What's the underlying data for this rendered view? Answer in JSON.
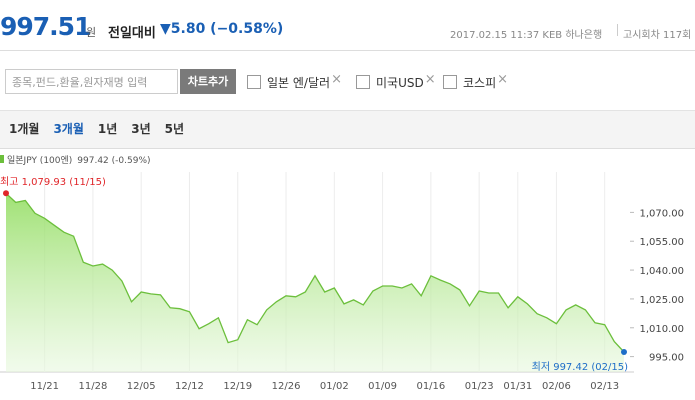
{
  "header": {
    "price": "997.51",
    "unit": "원",
    "change_label": "전일대비",
    "change": "▼5.80 (−0.58%)",
    "info": "2017.02.15 11:37 KEB 하나은행",
    "round": "고시회차 117회"
  },
  "controls": {
    "search_placeholder": "종목,펀드,환율,원자재명 입력",
    "add_button": "차트추가",
    "compare": [
      "일본 엔/달러",
      "미국USD",
      "코스피"
    ]
  },
  "periods": {
    "items": [
      "1개월",
      "3개월",
      "1년",
      "3년",
      "5년"
    ],
    "selected": 1
  },
  "chart_data": {
    "type": "area",
    "series": [
      {
        "name": "일본JPY (100엔)",
        "color": "#6cbf3c",
        "values": [
          1079.93,
          1075.2,
          1076.2,
          1069.5,
          1066.9,
          1063.3,
          1059.7,
          1057.6,
          1044.1,
          1042.1,
          1043.1,
          1040,
          1034.3,
          1023.5,
          1028.6,
          1027.6,
          1027.1,
          1020.4,
          1019.9,
          1018.3,
          1009.5,
          1012.1,
          1015.2,
          1002.3,
          1003.8,
          1014.2,
          1011.6,
          1019.3,
          1023.5,
          1026.6,
          1026.1,
          1028.6,
          1037,
          1028.6,
          1030.7,
          1022.4,
          1024.5,
          1021.9,
          1029.1,
          1031.7,
          1031.7,
          1030.7,
          1032.8,
          1026.6,
          1037,
          1034.8,
          1032.8,
          1029.7,
          1021.4,
          1029.1,
          1028.1,
          1028.1,
          1020.4,
          1026.1,
          1022.4,
          1017.3,
          1015.2,
          1012.1,
          1019.3,
          1021.9,
          1019.3,
          1012.6,
          1011.6,
          1002.8,
          997.42
        ]
      }
    ],
    "legend_value": "997.42 (-0.59%)",
    "categories": [
      null,
      null,
      null,
      null,
      "11/21",
      null,
      null,
      null,
      null,
      "11/28",
      null,
      null,
      null,
      null,
      "12/05",
      null,
      null,
      null,
      null,
      "12/12",
      null,
      null,
      null,
      null,
      "12/19",
      null,
      null,
      null,
      null,
      "12/26",
      null,
      null,
      null,
      null,
      "01/02",
      null,
      null,
      null,
      null,
      "01/09",
      null,
      null,
      null,
      null,
      "01/16",
      null,
      null,
      null,
      null,
      "01/23",
      null,
      null,
      null,
      "01/31",
      null,
      null,
      null,
      "02/06",
      null,
      null,
      null,
      null,
      "02/13",
      null,
      null
    ],
    "ylim": [
      987,
      1091
    ],
    "yticks": [
      {
        "value": 995,
        "label": "995.00"
      },
      {
        "value": 1010,
        "label": "1,010.00"
      },
      {
        "value": 1025,
        "label": "1,025.00"
      },
      {
        "value": 1040,
        "label": "1,040.00"
      },
      {
        "value": 1055,
        "label": "1,055.00"
      },
      {
        "value": 1070,
        "label": "1,070.00"
      }
    ],
    "annotations": {
      "high": "최고 1,079.93 (11/15)",
      "low": "최저 997.42 (02/15)"
    },
    "high_color": "#e0262a",
    "low_color": "#1e6ec8"
  }
}
